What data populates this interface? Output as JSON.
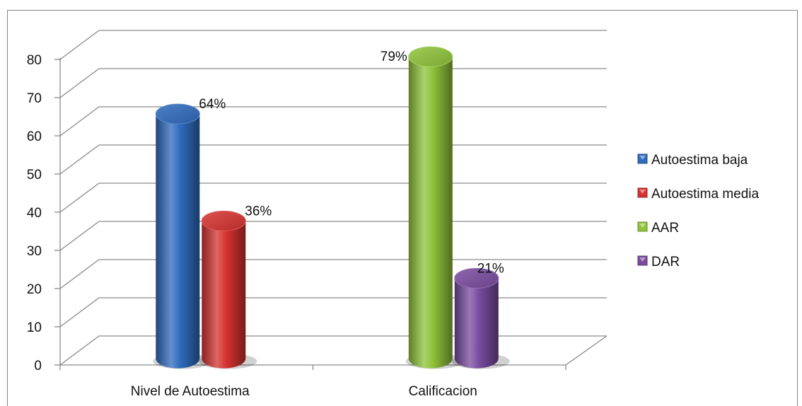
{
  "chart_data": {
    "type": "bar",
    "categories": [
      "Nivel de Autoestima",
      "Calificacion"
    ],
    "series": [
      {
        "name": "Autoestima baja",
        "color": "#2f6bbd",
        "values": [
          64,
          null
        ],
        "labels": [
          "64%",
          ""
        ]
      },
      {
        "name": "Autoestima media",
        "color": "#d63330",
        "values": [
          36,
          null
        ],
        "labels": [
          "36%",
          ""
        ]
      },
      {
        "name": "AAR",
        "color": "#8fc33a",
        "values": [
          null,
          79
        ],
        "labels": [
          "",
          "79%"
        ]
      },
      {
        "name": "DAR",
        "color": "#7a4ca0",
        "values": [
          null,
          21
        ],
        "labels": [
          "",
          "21%"
        ]
      }
    ],
    "ylim": [
      0,
      80
    ],
    "yticks": [
      "0",
      "10",
      "20",
      "30",
      "40",
      "50",
      "60",
      "70",
      "80"
    ],
    "grid": true,
    "style": "3d-cylinder",
    "legend_position": "right"
  }
}
